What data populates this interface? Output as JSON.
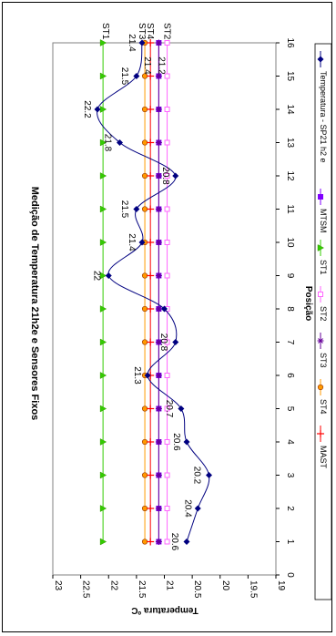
{
  "chart_data": {
    "type": "line",
    "title": "Medição de Temperatura 21h2e e Sensores Fixos",
    "xlabel": "Posição",
    "ylabel": "Temperatura ºC",
    "xlim": [
      0,
      16
    ],
    "ylim": [
      19,
      23
    ],
    "x_ticks": [
      "0",
      "1",
      "2",
      "3",
      "4",
      "5",
      "6",
      "7",
      "8",
      "9",
      "10",
      "11",
      "12",
      "13",
      "14",
      "15",
      "16"
    ],
    "y_ticks": [
      "19",
      "19.5",
      "20",
      "20.5",
      "21",
      "21.5",
      "22",
      "22.5",
      "23"
    ],
    "grid": false,
    "legend_position": "bottom",
    "x": [
      1,
      2,
      3,
      4,
      5,
      6,
      7,
      8,
      9,
      10,
      11,
      12,
      13,
      14,
      15,
      16
    ],
    "series": [
      {
        "name": "Temperatura - SP21 h2 e",
        "color": "#000080",
        "marker": "diamond",
        "smooth": true,
        "labeled": true,
        "values": [
          20.6,
          20.4,
          20.2,
          20.6,
          20.7,
          21.3,
          20.8,
          21,
          22,
          21.4,
          21.5,
          20.8,
          21.8,
          22.2,
          21.5,
          21.4
        ],
        "labels": [
          "20.6",
          "20.4",
          "20.2",
          "20.6",
          "20.7",
          "21.3",
          "20.8",
          "",
          "22",
          "21.4",
          "21.5",
          "20.8",
          "21.8",
          "22.2",
          "21.5",
          "21.4"
        ]
      },
      {
        "name": "MTSM",
        "color": "#8000ff",
        "marker": "square",
        "values": [
          21.1,
          21.1,
          21.1,
          21.1,
          21.1,
          21.1,
          21.1,
          21.1,
          21.1,
          21.1,
          21.1,
          21.1,
          21.1,
          21.1,
          21.1,
          21.1
        ]
      },
      {
        "name": "ST1",
        "color": "#33cc00",
        "marker": "triangle",
        "values": [
          22.1,
          22.1,
          22.1,
          22.1,
          22.1,
          22.1,
          22.1,
          22.1,
          22.1,
          22.1,
          22.1,
          22.1,
          22.1,
          22.1,
          22.1,
          22.1
        ]
      },
      {
        "name": "ST2",
        "color": "#ff66ff",
        "marker": "open-square",
        "values": [
          20.95,
          20.95,
          20.95,
          20.95,
          20.95,
          20.95,
          20.95,
          20.95,
          20.95,
          20.95,
          20.95,
          20.95,
          20.95,
          20.95,
          20.95,
          20.95
        ]
      },
      {
        "name": "ST3",
        "color": "#660099",
        "marker": "star",
        "values": [
          21.1,
          21.1,
          21.1,
          21.1,
          21.1,
          21.1,
          21.1,
          21.1,
          21.1,
          21.1,
          21.1,
          21.1,
          21.1,
          21.1,
          21.1,
          21.1
        ]
      },
      {
        "name": "ST4",
        "color": "#ff9900",
        "marker": "circle",
        "values": [
          21.35,
          21.35,
          21.35,
          21.35,
          21.35,
          21.35,
          21.35,
          21.35,
          21.35,
          21.35,
          21.35,
          21.35,
          21.35,
          21.35,
          21.35,
          21.35
        ]
      },
      {
        "name": "MAST",
        "color": "#ff0000",
        "marker": "plus",
        "values": [
          21.25,
          21.25,
          21.25,
          21.25,
          21.25,
          21.25,
          21.25,
          21.25,
          21.25,
          21.25,
          21.25,
          21.25,
          21.25,
          21.25,
          21.25,
          21.25
        ]
      }
    ],
    "annotations": [
      {
        "text": "ST1",
        "color": "#33cc00",
        "x": 16.1,
        "y": 22.1
      },
      {
        "text": "ST3",
        "color": "#660099",
        "x": 16.1,
        "y": 21.45
      },
      {
        "text": "ST4",
        "color": "#ff9900",
        "x": 16.1,
        "y": 21.3
      },
      {
        "text": "ST2",
        "color": "#ff66ff",
        "x": 16.1,
        "y": 21.0
      },
      {
        "text": "21.4",
        "color": "#ff0000",
        "x": 15.05,
        "y": 21.35
      },
      {
        "text": "21.2",
        "color": "#000080",
        "x": 15.05,
        "y": 21.1
      }
    ]
  }
}
